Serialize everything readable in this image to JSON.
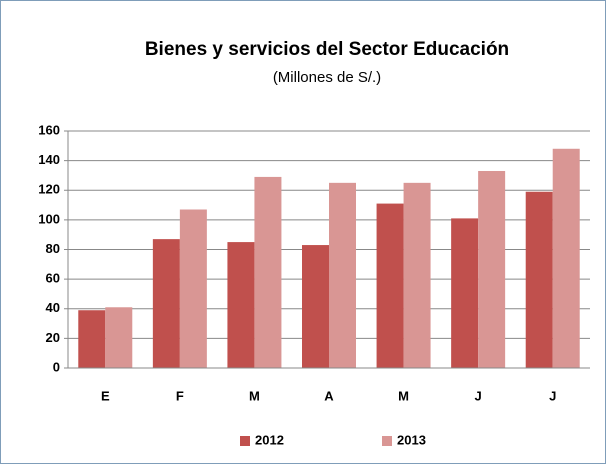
{
  "chart_data": {
    "type": "bar",
    "title": "Bienes y servicios del Sector Educación",
    "subtitle": "(Millones de S/.)",
    "categories": [
      "E",
      "F",
      "M",
      "A",
      "M",
      "J",
      "J"
    ],
    "series": [
      {
        "name": "2012",
        "color": "#c0504d",
        "values": [
          39,
          87,
          85,
          83,
          111,
          101,
          119
        ]
      },
      {
        "name": "2013",
        "color": "#d99694",
        "values": [
          41,
          107,
          129,
          125,
          125,
          133,
          148
        ]
      }
    ],
    "ylim": [
      0,
      160
    ],
    "yticks": [
      0,
      20,
      40,
      60,
      80,
      100,
      120,
      140,
      160
    ],
    "grid": true,
    "legend": "bottom"
  }
}
